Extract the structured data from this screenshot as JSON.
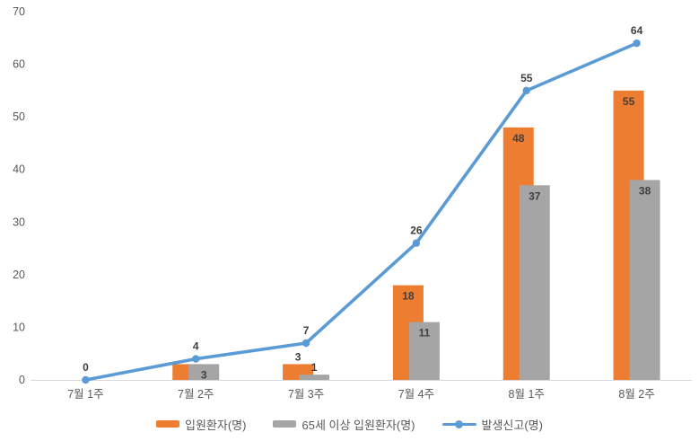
{
  "chart_data": {
    "type": "combo",
    "title": "",
    "xlabel": "",
    "ylabel": "",
    "categories": [
      "7월 1주",
      "7월 2주",
      "7월 3주",
      "7월 4주",
      "8월 1주",
      "8월 2주"
    ],
    "series": [
      {
        "name": "입원환자(명)",
        "type": "bar",
        "color": "#ED7D31",
        "values": [
          0,
          3,
          3,
          18,
          48,
          55
        ],
        "visible_labels": [
          "",
          "",
          "3",
          "18",
          "48",
          "55"
        ]
      },
      {
        "name": "65세 이상 입원환자(명)",
        "type": "bar",
        "color": "#A5A5A5",
        "values": [
          0,
          3,
          1,
          11,
          37,
          38
        ],
        "visible_labels": [
          "",
          "3",
          "1",
          "11",
          "37",
          "38"
        ]
      },
      {
        "name": "발생신고(명)",
        "type": "line",
        "color": "#5B9BD5",
        "values": [
          0,
          4,
          7,
          26,
          55,
          64
        ],
        "visible_labels": [
          "0",
          "4",
          "7",
          "26",
          "55",
          "64"
        ]
      }
    ],
    "ylim": [
      0,
      70
    ],
    "yticks": [
      0,
      10,
      20,
      30,
      40,
      50,
      60,
      70
    ],
    "grid": false,
    "legend_position": "bottom"
  },
  "colors": {
    "background": "#FFFFFF",
    "axis_line": "#D9D9D9",
    "axis_text": "#595959",
    "data_label_text": "#3F3F3F",
    "bar_series_1": "#ED7D31",
    "bar_series_2": "#A5A5A5",
    "line_series": "#5B9BD5"
  }
}
